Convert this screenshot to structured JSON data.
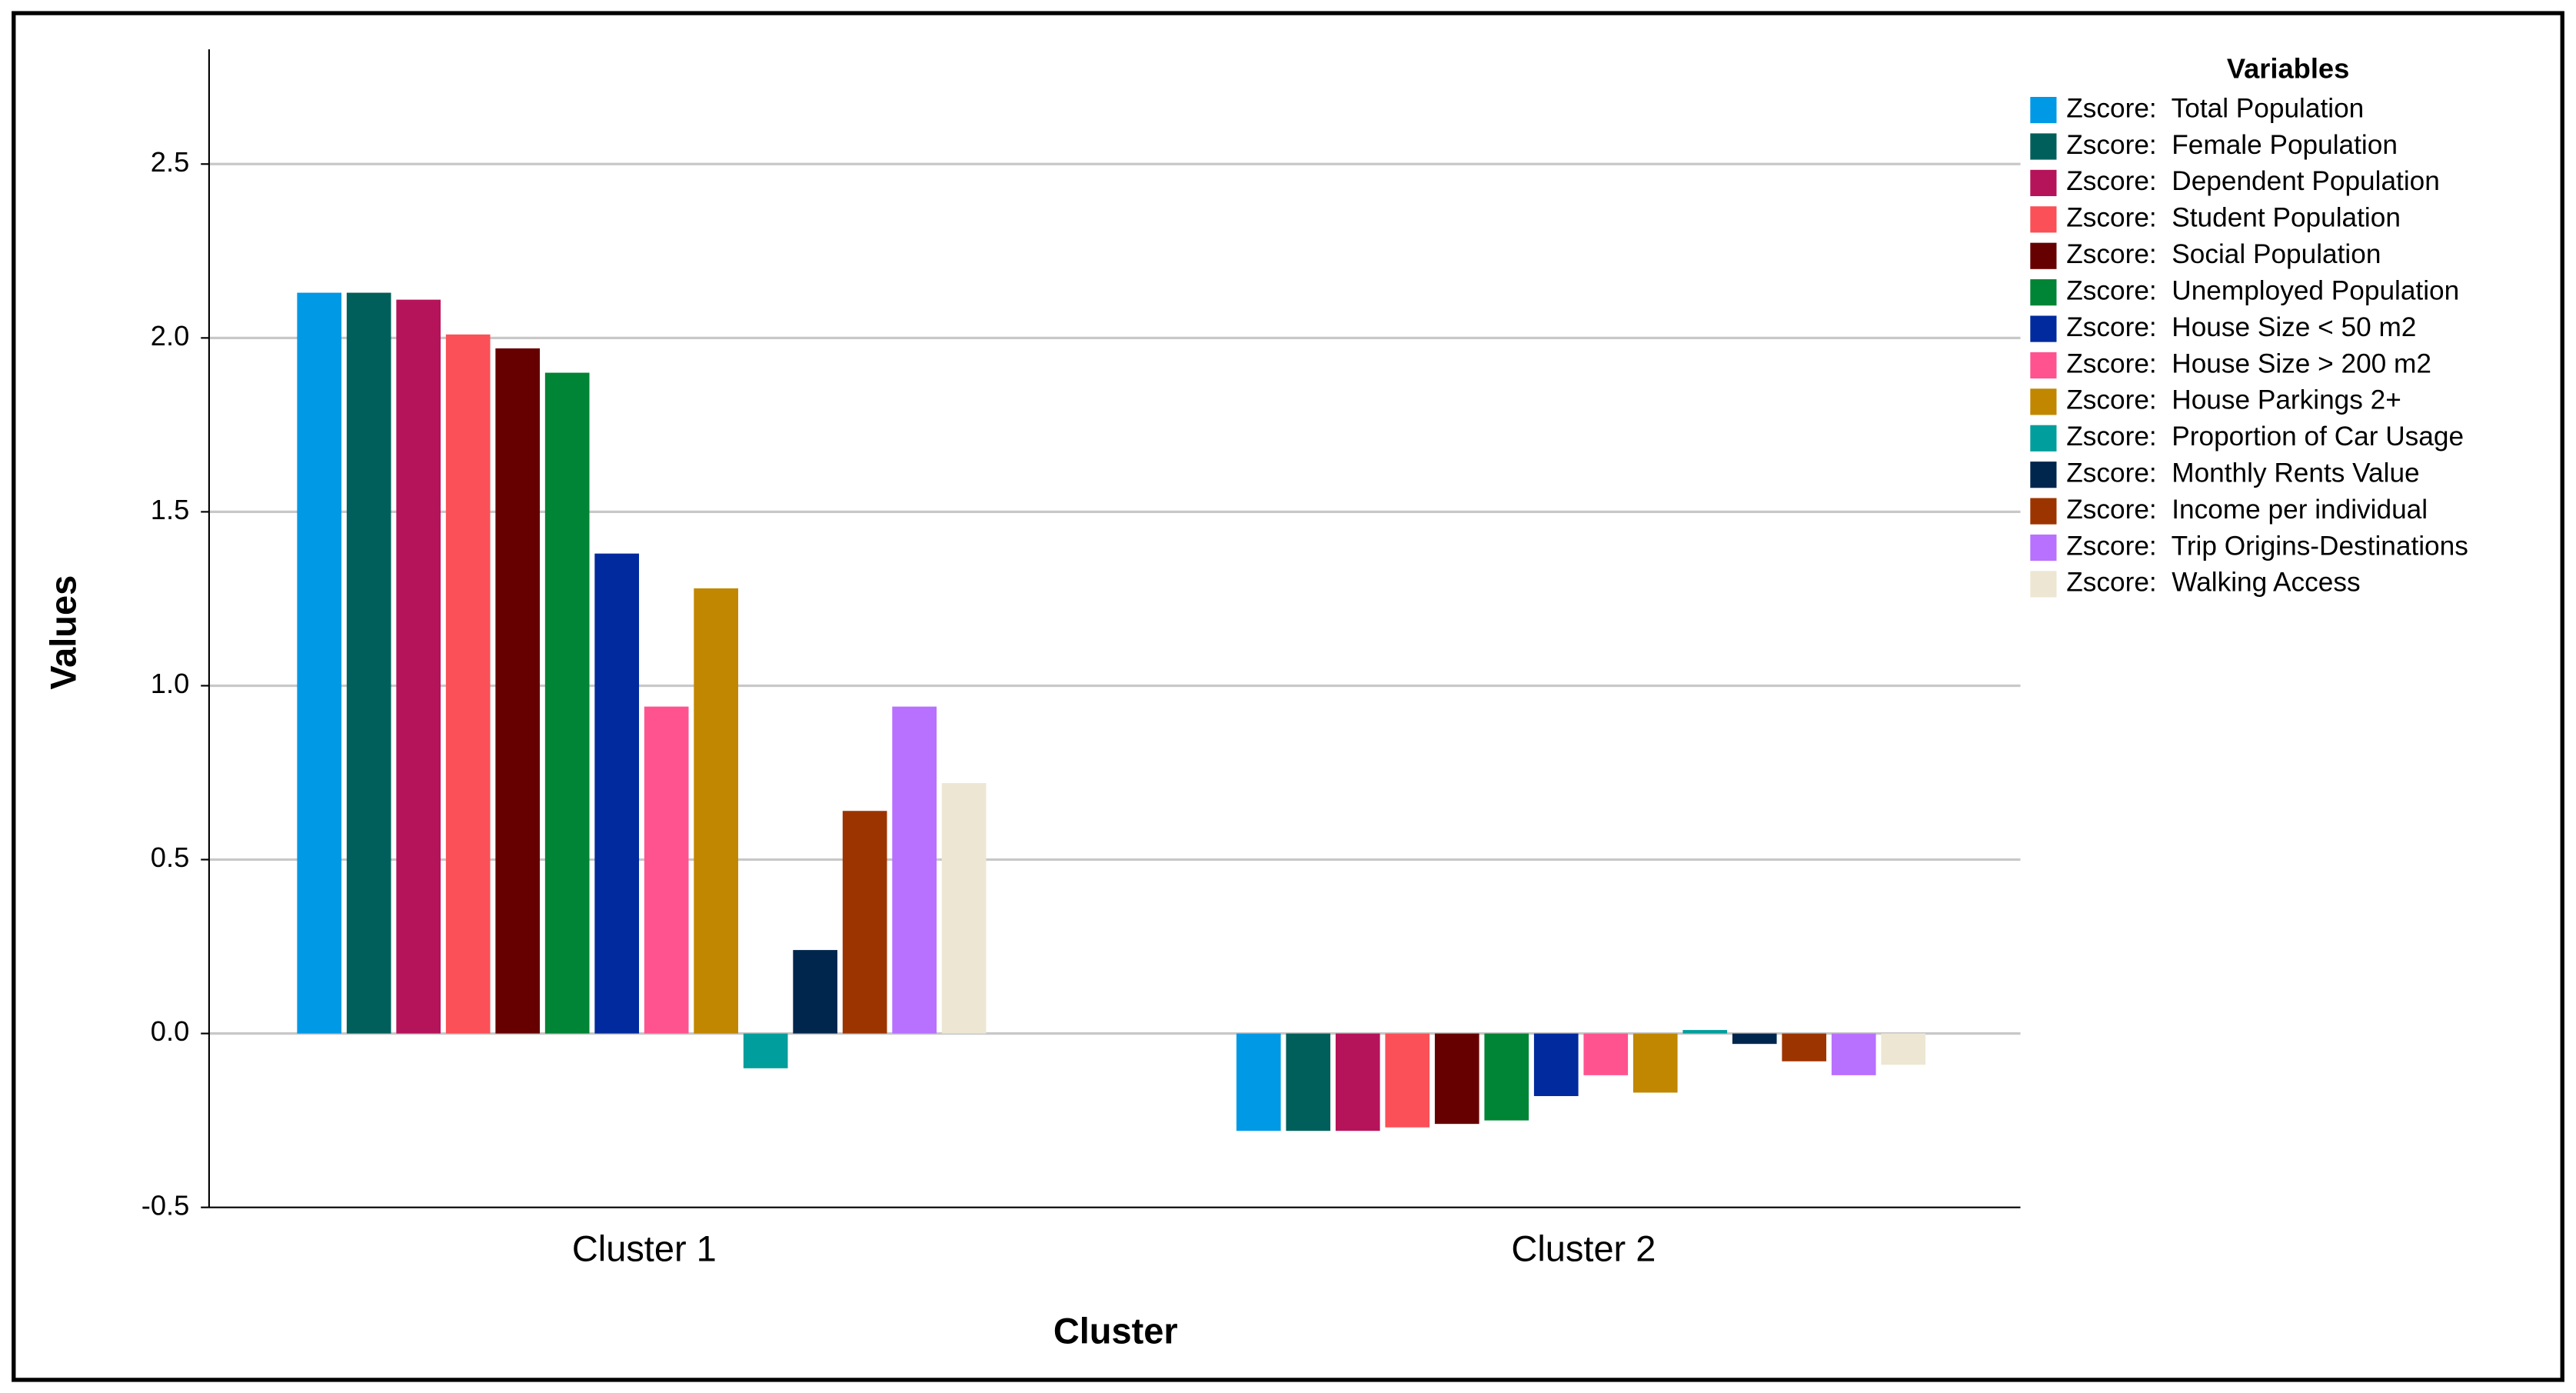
{
  "chart_data": {
    "type": "bar",
    "x_label": "Cluster",
    "y_label": "Values",
    "legend_title": "Variables",
    "categories": [
      "Cluster 1",
      "Cluster 2"
    ],
    "ylim": [
      -0.5,
      2.83
    ],
    "yticks": [
      -0.5,
      {
        "value": 0,
        "label": "0.0"
      },
      0.5,
      {
        "value": 1,
        "label": "1.0"
      },
      1.5,
      {
        "value": 2,
        "label": "2.0"
      },
      2.5
    ],
    "grid": true,
    "legend_position": "right",
    "series": [
      {
        "name": "Zscore:  Total Population",
        "color": "#0099e6",
        "values": [
          2.13,
          -0.28
        ]
      },
      {
        "name": "Zscore:  Female Population",
        "color": "#005f5a",
        "values": [
          2.13,
          -0.28
        ]
      },
      {
        "name": "Zscore:  Dependent Population",
        "color": "#b5135a",
        "values": [
          2.11,
          -0.28
        ]
      },
      {
        "name": "Zscore:  Student Population",
        "color": "#fb5057",
        "values": [
          2.01,
          -0.27
        ]
      },
      {
        "name": "Zscore:  Social Population",
        "color": "#660000",
        "values": [
          1.97,
          -0.26
        ]
      },
      {
        "name": "Zscore:  Unemployed Population",
        "color": "#008435",
        "values": [
          1.9,
          -0.25
        ]
      },
      {
        "name": "Zscore:  House Size < 50 m2",
        "color": "#002a9e",
        "values": [
          1.38,
          -0.18
        ]
      },
      {
        "name": "Zscore:  House Size > 200 m2",
        "color": "#ff5390",
        "values": [
          0.94,
          -0.12
        ]
      },
      {
        "name": "Zscore:  House Parkings 2+",
        "color": "#c18700",
        "values": [
          1.28,
          -0.17
        ]
      },
      {
        "name": "Zscore:  Proportion of Car Usage",
        "color": "#009e9c",
        "values": [
          -0.1,
          0.01
        ]
      },
      {
        "name": "Zscore:  Monthly Rents Value",
        "color": "#00264d",
        "values": [
          0.24,
          -0.03
        ]
      },
      {
        "name": "Zscore:  Income per individual",
        "color": "#9c3400",
        "values": [
          0.64,
          -0.08
        ]
      },
      {
        "name": "Zscore:  Trip Origins-Destinations",
        "color": "#b870ff",
        "values": [
          0.94,
          -0.12
        ]
      },
      {
        "name": "Zscore:  Walking Access",
        "color": "#ede6d3",
        "values": [
          0.72,
          -0.09
        ]
      }
    ]
  }
}
